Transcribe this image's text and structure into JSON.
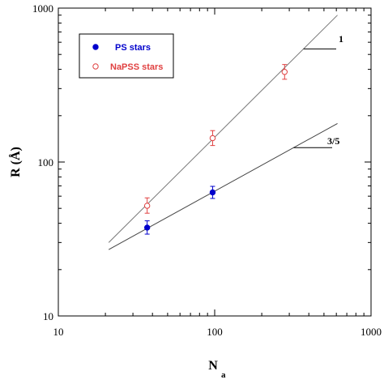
{
  "chart_data": {
    "type": "scatter",
    "x_scale": "log",
    "y_scale": "log",
    "xlim": [
      10,
      1000
    ],
    "ylim": [
      10,
      1000
    ],
    "x_ticks": [
      10,
      100,
      1000
    ],
    "y_ticks": [
      10,
      100,
      1000
    ],
    "x_tick_labels": [
      "10",
      "100",
      "1000"
    ],
    "y_tick_labels": [
      "10",
      "100",
      "1000"
    ],
    "xlabel": "N",
    "xlabel_sub": "a",
    "ylabel": "R (Å)",
    "grid": false,
    "legend_position": "top-left",
    "series": [
      {
        "name": "PS stars",
        "marker": "filled-circle",
        "color": "#0000cc",
        "x": [
          37,
          97
        ],
        "y": [
          37.5,
          63.5
        ],
        "err_low": [
          34,
          58
        ],
        "err_high": [
          41.5,
          69.5
        ]
      },
      {
        "name": "NaPSS stars",
        "marker": "open-circle",
        "color": "#e04040",
        "x": [
          37,
          97,
          280
        ],
        "y": [
          52,
          143,
          385
        ],
        "err_low": [
          46.5,
          128,
          345
        ],
        "err_high": [
          58.5,
          160,
          430
        ]
      }
    ],
    "fit_lines": [
      {
        "slope_label": "1",
        "x": [
          21,
          610
        ],
        "y": [
          30,
          900
        ],
        "color": "#777777"
      },
      {
        "slope_label": "3/5",
        "x": [
          21,
          610
        ],
        "y": [
          27,
          178
        ],
        "color": "#444444"
      }
    ]
  }
}
